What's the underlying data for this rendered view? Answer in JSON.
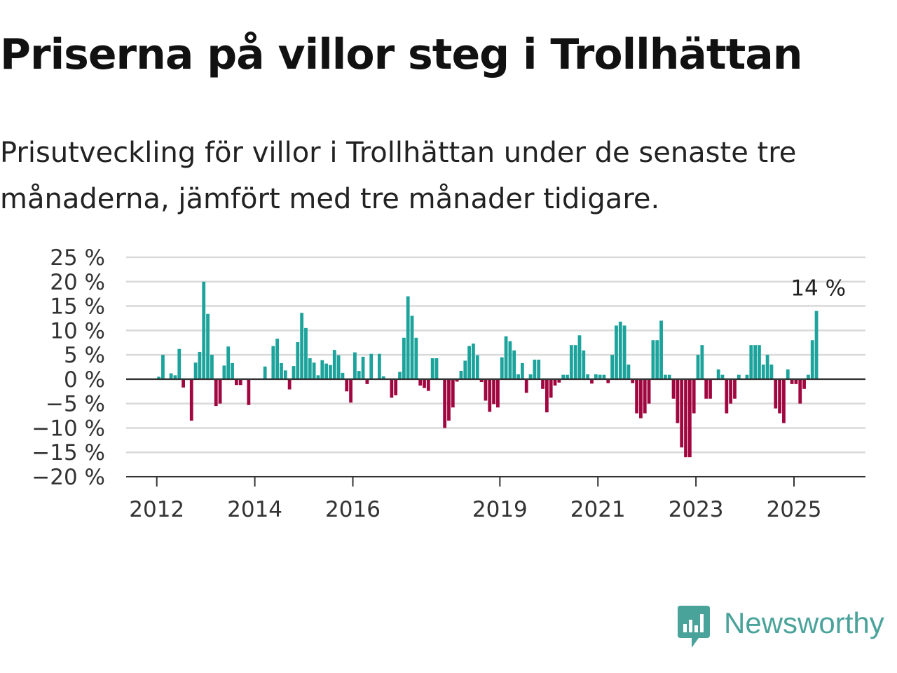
{
  "title": "Priserna på villor steg i Trollhättan",
  "subtitle": "Prisutveckling för villor i Trollhättan under de senaste tre månaderna, jämfört med tre månader tidigare.",
  "brand": {
    "name": "Newsworthy",
    "icon": "newsworthy-logo-icon",
    "color": "#4aa39a"
  },
  "colors": {
    "positive": "#1ba39c",
    "negative": "#a0063f",
    "grid": "#d9d9d9",
    "axis": "#333333"
  },
  "chart_data": {
    "type": "bar",
    "title": "Priserna på villor steg i Trollhättan",
    "subtitle": "Prisutveckling för villor i Trollhättan under de senaste tre månaderna, jämfört med tre månader tidigare.",
    "xlabel": "",
    "ylabel": "",
    "ylim": [
      -20,
      25
    ],
    "xlim": [
      "2011-05",
      "2026-06"
    ],
    "grid": true,
    "y_ticks": [
      25,
      20,
      15,
      10,
      5,
      0,
      -5,
      -10,
      -15,
      -20
    ],
    "y_tick_labels": [
      "25 %",
      "20 %",
      "15 %",
      "10 %",
      "5 %",
      "0 %",
      "−5 %",
      "−10 %",
      "−15 %",
      "−20 %"
    ],
    "x_ticks": [
      "2012-01",
      "2014-01",
      "2016-01",
      "2019-01",
      "2021-01",
      "2023-01",
      "2025-01"
    ],
    "x_tick_labels": [
      "2012",
      "2014",
      "2016",
      "2019",
      "2021",
      "2023",
      "2025"
    ],
    "end_label": "14 %",
    "unit": "%",
    "series": [
      {
        "name": "",
        "points": [
          [
            "2012-01",
            0.5
          ],
          [
            "2012-02",
            5
          ],
          [
            "2012-04",
            1.2
          ],
          [
            "2012-05",
            0.8
          ],
          [
            "2012-06",
            6.2
          ],
          [
            "2012-07",
            -1.7
          ],
          [
            "2012-09",
            -8.5
          ],
          [
            "2012-10",
            3.4
          ],
          [
            "2012-11",
            5.6
          ],
          [
            "2012-12",
            20
          ],
          [
            "2013-01",
            13.4
          ],
          [
            "2013-02",
            5
          ],
          [
            "2013-03",
            -5.5
          ],
          [
            "2013-04",
            -5
          ],
          [
            "2013-05",
            2.8
          ],
          [
            "2013-06",
            6.7
          ],
          [
            "2013-07",
            3.3
          ],
          [
            "2013-08",
            -1.2
          ],
          [
            "2013-09",
            -1.2
          ],
          [
            "2013-11",
            -5.3
          ],
          [
            "2014-03",
            2.6
          ],
          [
            "2014-05",
            6.8
          ],
          [
            "2014-06",
            8.3
          ],
          [
            "2014-07",
            3.3
          ],
          [
            "2014-08",
            1.8
          ],
          [
            "2014-09",
            -2.1
          ],
          [
            "2014-10",
            2.7
          ],
          [
            "2014-11",
            7.6
          ],
          [
            "2014-12",
            13.6
          ],
          [
            "2015-01",
            10.5
          ],
          [
            "2015-02",
            4.3
          ],
          [
            "2015-03",
            3.4
          ],
          [
            "2015-04",
            0.8
          ],
          [
            "2015-05",
            3.9
          ],
          [
            "2015-06",
            3.2
          ],
          [
            "2015-07",
            2.9
          ],
          [
            "2015-08",
            6
          ],
          [
            "2015-09",
            4.9
          ],
          [
            "2015-10",
            1.3
          ],
          [
            "2015-11",
            -2.5
          ],
          [
            "2015-12",
            -4.8
          ],
          [
            "2016-01",
            5.5
          ],
          [
            "2016-02",
            1.7
          ],
          [
            "2016-03",
            4.6
          ],
          [
            "2016-04",
            -1
          ],
          [
            "2016-05",
            5.2
          ],
          [
            "2016-07",
            5.2
          ],
          [
            "2016-08",
            0.6
          ],
          [
            "2016-10",
            -3.8
          ],
          [
            "2016-11",
            -3.3
          ],
          [
            "2016-12",
            1.5
          ],
          [
            "2017-01",
            8.5
          ],
          [
            "2017-02",
            17
          ],
          [
            "2017-03",
            13
          ],
          [
            "2017-04",
            8.5
          ],
          [
            "2017-05",
            -1.3
          ],
          [
            "2017-06",
            -1.8
          ],
          [
            "2017-07",
            -2.4
          ],
          [
            "2017-08",
            4.3
          ],
          [
            "2017-09",
            4.3
          ],
          [
            "2017-11",
            -10
          ],
          [
            "2017-12",
            -8.5
          ],
          [
            "2018-01",
            -5.8
          ],
          [
            "2018-02",
            -0.5
          ],
          [
            "2018-03",
            1.7
          ],
          [
            "2018-04",
            3.8
          ],
          [
            "2018-05",
            6.8
          ],
          [
            "2018-06",
            7.3
          ],
          [
            "2018-07",
            4.9
          ],
          [
            "2018-08",
            -0.6
          ],
          [
            "2018-09",
            -4.4
          ],
          [
            "2018-10",
            -6.7
          ],
          [
            "2018-11",
            -5.1
          ],
          [
            "2018-12",
            -5.8
          ],
          [
            "2019-01",
            4.5
          ],
          [
            "2019-02",
            8.8
          ],
          [
            "2019-03",
            7.8
          ],
          [
            "2019-04",
            5.9
          ],
          [
            "2019-05",
            1
          ],
          [
            "2019-06",
            3.3
          ],
          [
            "2019-07",
            -2.8
          ],
          [
            "2019-08",
            1
          ],
          [
            "2019-09",
            4
          ],
          [
            "2019-10",
            4
          ],
          [
            "2019-11",
            -2
          ],
          [
            "2019-12",
            -6.8
          ],
          [
            "2020-01",
            -3.8
          ],
          [
            "2020-02",
            -1.3
          ],
          [
            "2020-03",
            -0.7
          ],
          [
            "2020-04",
            0.9
          ],
          [
            "2020-05",
            0.9
          ],
          [
            "2020-06",
            7
          ],
          [
            "2020-07",
            7
          ],
          [
            "2020-08",
            9
          ],
          [
            "2020-09",
            5.9
          ],
          [
            "2020-10",
            1
          ],
          [
            "2020-11",
            -0.9
          ],
          [
            "2020-12",
            1
          ],
          [
            "2021-01",
            0.9
          ],
          [
            "2021-02",
            0.9
          ],
          [
            "2021-03",
            -0.8
          ],
          [
            "2021-04",
            5
          ],
          [
            "2021-05",
            11
          ],
          [
            "2021-06",
            11.8
          ],
          [
            "2021-07",
            11
          ],
          [
            "2021-08",
            3
          ],
          [
            "2021-09",
            -0.8
          ],
          [
            "2021-10",
            -7
          ],
          [
            "2021-11",
            -8
          ],
          [
            "2021-12",
            -7
          ],
          [
            "2022-01",
            -5
          ],
          [
            "2022-02",
            8
          ],
          [
            "2022-03",
            8
          ],
          [
            "2022-04",
            12
          ],
          [
            "2022-05",
            0.9
          ],
          [
            "2022-06",
            0.9
          ],
          [
            "2022-07",
            -4
          ],
          [
            "2022-08",
            -9
          ],
          [
            "2022-09",
            -14
          ],
          [
            "2022-10",
            -16
          ],
          [
            "2022-11",
            -16
          ],
          [
            "2022-12",
            -7
          ],
          [
            "2023-01",
            5
          ],
          [
            "2023-02",
            7
          ],
          [
            "2023-03",
            -4
          ],
          [
            "2023-04",
            -4
          ],
          [
            "2023-06",
            2
          ],
          [
            "2023-07",
            0.9
          ],
          [
            "2023-08",
            -7
          ],
          [
            "2023-09",
            -5
          ],
          [
            "2023-10",
            -4
          ],
          [
            "2023-11",
            0.9
          ],
          [
            "2024-01",
            0.9
          ],
          [
            "2024-02",
            7
          ],
          [
            "2024-03",
            7
          ],
          [
            "2024-04",
            7
          ],
          [
            "2024-05",
            3
          ],
          [
            "2024-06",
            5
          ],
          [
            "2024-07",
            3
          ],
          [
            "2024-08",
            -6
          ],
          [
            "2024-09",
            -7
          ],
          [
            "2024-10",
            -9
          ],
          [
            "2024-11",
            2
          ],
          [
            "2024-12",
            -1
          ],
          [
            "2025-01",
            -1
          ],
          [
            "2025-02",
            -5
          ],
          [
            "2025-03",
            -2
          ],
          [
            "2025-04",
            0.9
          ],
          [
            "2025-05",
            8
          ],
          [
            "2025-06",
            14
          ]
        ]
      }
    ]
  }
}
